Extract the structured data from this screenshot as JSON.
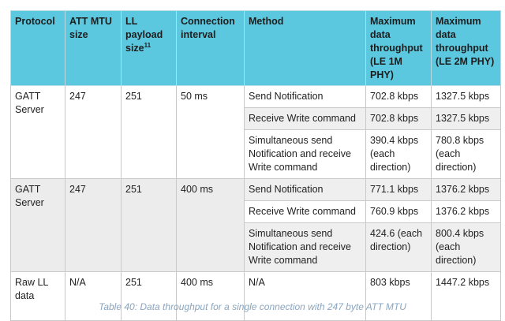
{
  "table": {
    "headers": [
      "Protocol",
      "ATT MTU size",
      "LL payload size",
      "Connection interval",
      "Method",
      "Maximum data throughput (LE 1M PHY)",
      "Maximum data throughput (LE 2M PHY)"
    ],
    "ll_payload_footnote": "11",
    "groups": [
      {
        "protocol": "GATT Server",
        "att_mtu": "247",
        "ll_payload": "251",
        "interval": "50 ms",
        "rows": [
          {
            "method": "Send Notification",
            "le1m": "702.8 kbps",
            "le2m": "1327.5 kbps"
          },
          {
            "method": "Receive Write command",
            "le1m": "702.8 kbps",
            "le2m": "1327.5 kbps"
          },
          {
            "method": "Simultaneous send Notification and receive Write command",
            "le1m": "390.4 kbps (each direction)",
            "le2m": "780.8 kbps (each direction)"
          }
        ]
      },
      {
        "protocol": "GATT Server",
        "att_mtu": "247",
        "ll_payload": "251",
        "interval": "400 ms",
        "rows": [
          {
            "method": "Send Notification",
            "le1m": "771.1 kbps",
            "le2m": "1376.2 kbps"
          },
          {
            "method": "Receive Write command",
            "le1m": "760.9 kbps",
            "le2m": "1376.2 kbps"
          },
          {
            "method": "Simultaneous send Notification and receive Write command",
            "le1m": "424.6 (each direction)",
            "le2m": "800.4 kbps (each direction)"
          }
        ]
      },
      {
        "protocol": "Raw LL data",
        "att_mtu": "N/A",
        "ll_payload": "251",
        "interval": "400 ms",
        "rows": [
          {
            "method": "N/A",
            "le1m": "803 kbps",
            "le2m": "1447.2 kbps"
          }
        ]
      }
    ]
  },
  "caption": "Table 40: Data throughput for a single connection with 247 byte ATT MTU"
}
